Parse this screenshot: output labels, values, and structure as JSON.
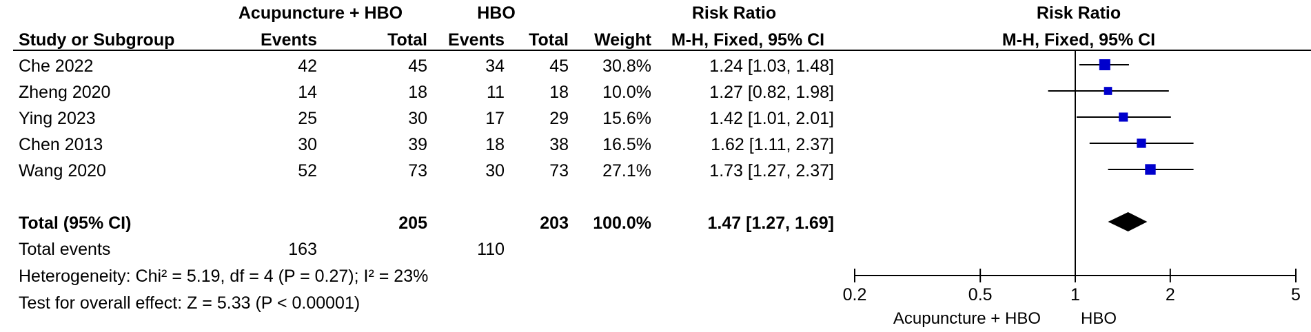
{
  "header": {
    "group1_label": "Acupuncture + HBO",
    "group2_label": "HBO",
    "rr_label": "Risk Ratio",
    "plot_label": "Risk Ratio",
    "col_study": "Study or Subgroup",
    "col_events1": "Events",
    "col_total1": "Total",
    "col_events2": "Events",
    "col_total2": "Total",
    "col_weight": "Weight",
    "col_ci": "M-H, Fixed, 95% CI",
    "plot_method": "M-H, Fixed, 95% CI"
  },
  "studies": [
    {
      "name": "Che 2022",
      "e1": "42",
      "t1": "45",
      "e2": "34",
      "t2": "45",
      "weight": "30.8%",
      "ci": "1.24 [1.03, 1.48]"
    },
    {
      "name": "Zheng 2020",
      "e1": "14",
      "t1": "18",
      "e2": "11",
      "t2": "18",
      "weight": "10.0%",
      "ci": "1.27 [0.82, 1.98]"
    },
    {
      "name": "Ying 2023",
      "e1": "25",
      "t1": "30",
      "e2": "17",
      "t2": "29",
      "weight": "15.6%",
      "ci": "1.42 [1.01, 2.01]"
    },
    {
      "name": "Chen 2013",
      "e1": "30",
      "t1": "39",
      "e2": "18",
      "t2": "38",
      "weight": "16.5%",
      "ci": "1.62 [1.11, 2.37]"
    },
    {
      "name": "Wang 2020",
      "e1": "52",
      "t1": "73",
      "e2": "30",
      "t2": "73",
      "weight": "27.1%",
      "ci": "1.73 [1.27, 2.37]"
    }
  ],
  "total": {
    "label": "Total (95% CI)",
    "t1": "205",
    "t2": "203",
    "weight": "100.0%",
    "ci": "1.47 [1.27, 1.69]"
  },
  "events": {
    "label": "Total events",
    "e1": "163",
    "e2": "110"
  },
  "heterogeneity": "Heterogeneity: Chi² = 5.19, df = 4 (P = 0.27); I² = 23%",
  "overall_effect": "Test for overall effect: Z = 5.33 (P < 0.00001)",
  "axis": {
    "favours_left": "Acupuncture + HBO",
    "favours_right": "HBO"
  },
  "colors": {
    "marker": "#0000cc",
    "diamond": "#000000",
    "line": "#000000"
  },
  "chart_data": {
    "type": "forest",
    "scale": "log",
    "xlim": [
      0.2,
      5
    ],
    "ticks": [
      0.2,
      0.5,
      1,
      2,
      5
    ],
    "tick_labels": [
      "0.2",
      "0.5",
      "1",
      "2",
      "5"
    ],
    "reference_line": 1,
    "points": [
      {
        "study": "Che 2022",
        "rr": 1.24,
        "lower": 1.03,
        "upper": 1.48,
        "weight": 30.8
      },
      {
        "study": "Zheng 2020",
        "rr": 1.27,
        "lower": 0.82,
        "upper": 1.98,
        "weight": 10.0
      },
      {
        "study": "Ying 2023",
        "rr": 1.42,
        "lower": 1.01,
        "upper": 2.01,
        "weight": 15.6
      },
      {
        "study": "Chen 2013",
        "rr": 1.62,
        "lower": 1.11,
        "upper": 2.37,
        "weight": 16.5
      },
      {
        "study": "Wang 2020",
        "rr": 1.73,
        "lower": 1.27,
        "upper": 2.37,
        "weight": 27.1
      }
    ],
    "pooled": {
      "rr": 1.47,
      "lower": 1.27,
      "upper": 1.69
    }
  }
}
